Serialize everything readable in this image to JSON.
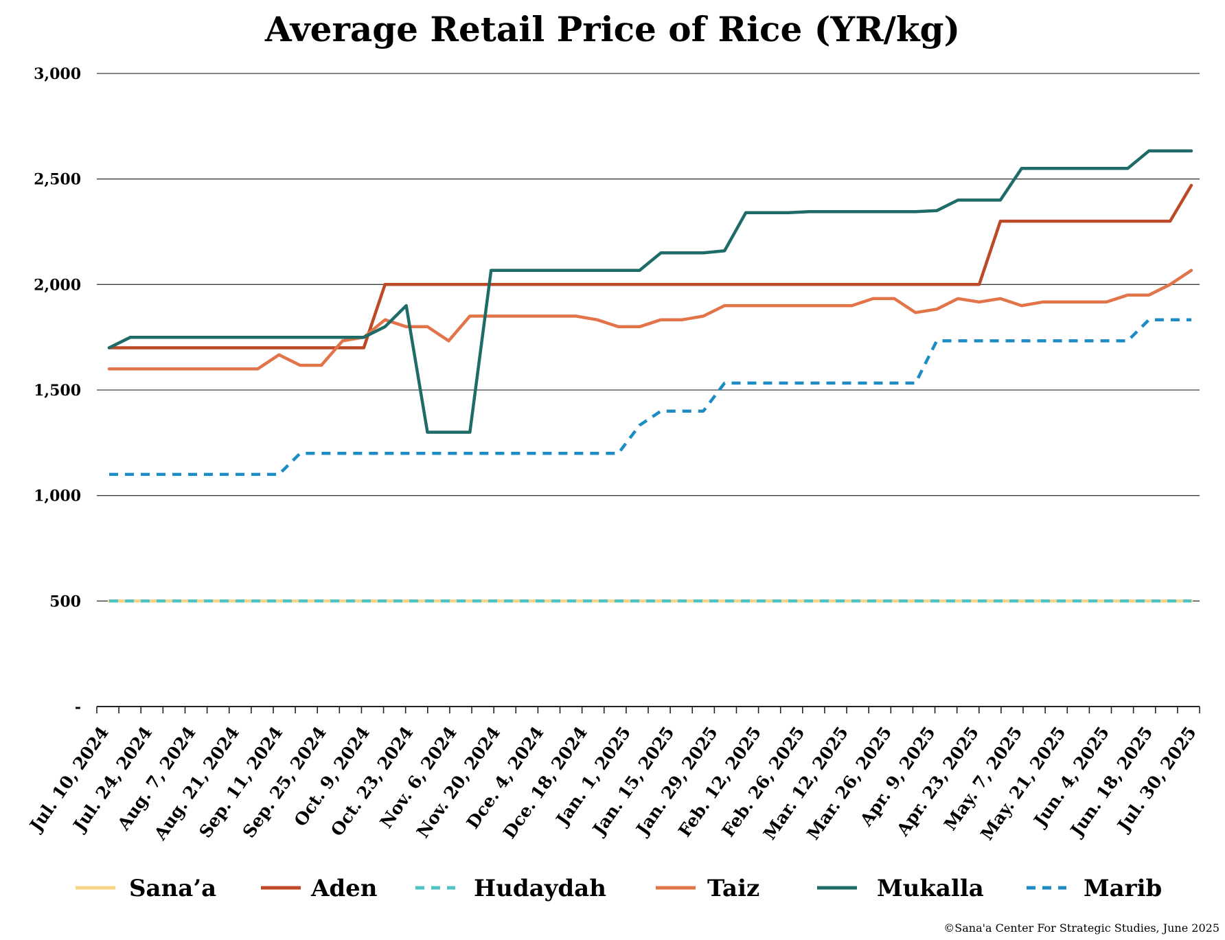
{
  "chart_data": {
    "type": "line",
    "title": "Average Retail Price of Rice (YR/kg)",
    "ylim": [
      0,
      3000
    ],
    "y_ticks": [
      {
        "value": 0,
        "label": "-"
      },
      {
        "value": 500,
        "label": "500"
      },
      {
        "value": 1000,
        "label": "1,000"
      },
      {
        "value": 1500,
        "label": "1,500"
      },
      {
        "value": 2000,
        "label": "2,000"
      },
      {
        "value": 2500,
        "label": "2,500"
      },
      {
        "value": 3000,
        "label": "3,000"
      }
    ],
    "grid": true,
    "legend_position": "bottom",
    "x_tick_labels": [
      "Jul. 10, 2024",
      "Jul. 24, 2024",
      "Aug. 7, 2024",
      "Aug. 21, 2024",
      "Sep. 11, 2024",
      "Sep. 25, 2024",
      "Oct. 9, 2024",
      "Oct. 23, 2024",
      "Nov. 6, 2024",
      "Nov. 20, 2024",
      "Dce. 4, 2024",
      "Dce. 18, 2024",
      "Jan. 1, 2025",
      "Jan. 15, 2025",
      "Jan. 29, 2025",
      "Feb. 12, 2025",
      "Feb. 26, 2025",
      "Mar. 12, 2025",
      "Mar. 26, 2025",
      "Apr. 9, 2025",
      "Apr. 23, 2025",
      "May. 7, 2025",
      "May. 21, 2025",
      "Jun. 4, 2025",
      "Jun. 18, 2025",
      "Jul. 30, 2025"
    ],
    "series": [
      {
        "name": "Sana’a",
        "color": "#f7d486",
        "dash": false,
        "values": [
          500,
          500,
          500,
          500,
          500,
          500,
          500,
          500,
          500,
          500,
          500,
          500,
          500,
          500,
          500,
          500,
          500,
          500,
          500,
          500,
          500,
          500,
          500,
          500,
          500,
          500,
          500,
          500,
          500,
          500,
          500,
          500,
          500,
          500,
          500,
          500,
          500,
          500,
          500,
          500,
          500,
          500,
          500,
          500,
          500,
          500,
          500,
          500,
          500,
          500,
          500,
          500
        ]
      },
      {
        "name": "Aden",
        "color": "#bd4a27",
        "dash": false,
        "values": [
          1700,
          1700,
          1700,
          1700,
          1700,
          1700,
          1700,
          1700,
          1700,
          1700,
          1700,
          1700,
          1700,
          2000,
          2000,
          2000,
          2000,
          2000,
          2000,
          2000,
          2000,
          2000,
          2000,
          2000,
          2000,
          2000,
          2000,
          2000,
          2000,
          2000,
          2000,
          2000,
          2000,
          2000,
          2000,
          2000,
          2000,
          2000,
          2000,
          2000,
          2000,
          2000,
          2300,
          2300,
          2300,
          2300,
          2300,
          2300,
          2300,
          2300,
          2300,
          2470
        ]
      },
      {
        "name": "Hudaydah",
        "color": "#4fc3c4",
        "dash": true,
        "values": [
          500,
          500,
          500,
          500,
          500,
          500,
          500,
          500,
          500,
          500,
          500,
          500,
          500,
          500,
          500,
          500,
          500,
          500,
          500,
          500,
          500,
          500,
          500,
          500,
          500,
          500,
          500,
          500,
          500,
          500,
          500,
          500,
          500,
          500,
          500,
          500,
          500,
          500,
          500,
          500,
          500,
          500,
          500,
          500,
          500,
          500,
          500,
          500,
          500,
          500,
          500,
          500
        ]
      },
      {
        "name": "Taiz",
        "color": "#e2744a",
        "dash": false,
        "values": [
          1600,
          1600,
          1600,
          1600,
          1600,
          1600,
          1600,
          1600,
          1667,
          1617,
          1617,
          1733,
          1750,
          1833,
          1800,
          1800,
          1733,
          1850,
          1850,
          1850,
          1850,
          1850,
          1850,
          1833,
          1800,
          1800,
          1833,
          1833,
          1850,
          1900,
          1900,
          1900,
          1900,
          1900,
          1900,
          1900,
          1933,
          1933,
          1867,
          1883,
          1933,
          1917,
          1933,
          1900,
          1917,
          1917,
          1917,
          1917,
          1950,
          1950,
          2000,
          2067
        ]
      },
      {
        "name": "Mukalla",
        "color": "#1e6b68",
        "dash": false,
        "values": [
          1700,
          1750,
          1750,
          1750,
          1750,
          1750,
          1750,
          1750,
          1750,
          1750,
          1750,
          1750,
          1750,
          1800,
          1900,
          1300,
          1300,
          1300,
          2067,
          2067,
          2067,
          2067,
          2067,
          2067,
          2067,
          2067,
          2150,
          2150,
          2150,
          2160,
          2340,
          2340,
          2340,
          2345,
          2345,
          2345,
          2345,
          2345,
          2345,
          2350,
          2400,
          2400,
          2400,
          2550,
          2550,
          2550,
          2550,
          2550,
          2550,
          2633,
          2633,
          2633
        ]
      },
      {
        "name": "Marib",
        "color": "#1e8cc4",
        "dash": true,
        "values": [
          1100,
          1100,
          1100,
          1100,
          1100,
          1100,
          1100,
          1100,
          1100,
          1200,
          1200,
          1200,
          1200,
          1200,
          1200,
          1200,
          1200,
          1200,
          1200,
          1200,
          1200,
          1200,
          1200,
          1200,
          1200,
          1333,
          1400,
          1400,
          1400,
          1533,
          1533,
          1533,
          1533,
          1533,
          1533,
          1533,
          1533,
          1533,
          1533,
          1733,
          1733,
          1733,
          1733,
          1733,
          1733,
          1733,
          1733,
          1733,
          1733,
          1833,
          1833,
          1833
        ]
      }
    ]
  },
  "credit": "©Sana'a Center For Strategic Studies, June 2025"
}
